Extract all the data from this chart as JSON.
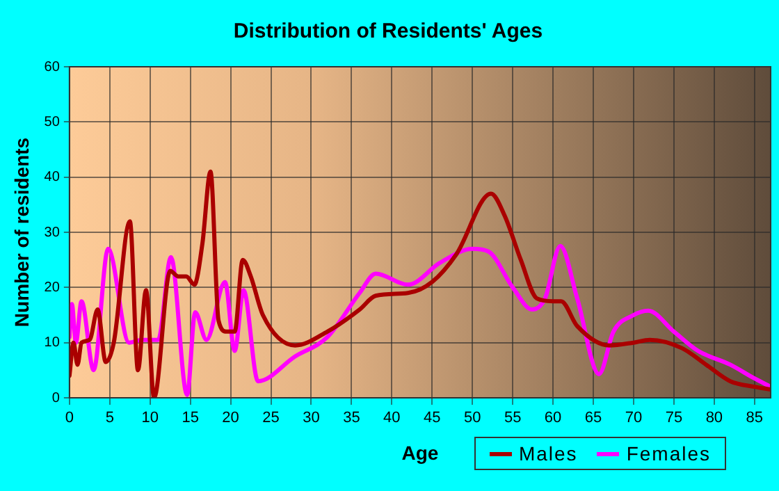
{
  "chart_data": {
    "type": "line",
    "title": "Distribution of Residents' Ages",
    "xlabel": "Age",
    "ylabel": "Number of residents",
    "xlim": [
      0,
      87
    ],
    "xticks": [
      0,
      5,
      10,
      15,
      20,
      25,
      30,
      35,
      40,
      45,
      50,
      55,
      60,
      65,
      70,
      75,
      80,
      85
    ],
    "ylim": [
      0,
      60
    ],
    "yticks": [
      0,
      10,
      20,
      30,
      40,
      50,
      60
    ],
    "grid": true,
    "legend": "bottom right",
    "marker": "none",
    "line_style": "solid",
    "series": [
      {
        "name": "Males",
        "color": "#aa0000",
        "x": [
          0,
          0.5,
          1,
          1.5,
          2.5,
          3.5,
          4.5,
          5.5,
          7.5,
          8.5,
          9.5,
          10.5,
          12.5,
          13.5,
          14.5,
          15.5,
          16.5,
          17.5,
          18.5,
          19.5,
          20.5,
          21.5,
          22.5,
          24,
          28,
          32,
          36,
          38,
          42,
          45,
          48,
          52.3,
          54,
          56,
          58,
          60,
          61,
          63,
          67,
          70,
          72,
          76,
          79,
          82,
          85,
          87
        ],
        "values": [
          4,
          10,
          6,
          10,
          10.5,
          16,
          6.5,
          10,
          32,
          5,
          19.5,
          0,
          23,
          22,
          22,
          20.5,
          28,
          41,
          14,
          12,
          12,
          25,
          22,
          15,
          9.5,
          12,
          16,
          18.5,
          19,
          21,
          26,
          37,
          33,
          25,
          18,
          17.5,
          17.5,
          13,
          9.5,
          10,
          10.5,
          9,
          6,
          3,
          2,
          1.5
        ]
      },
      {
        "name": "Females",
        "color": "#ff00ff",
        "x": [
          0,
          0.3,
          0.8,
          1.5,
          3,
          4.8,
          7.4,
          9,
          11,
          12.6,
          14.6,
          15.6,
          17,
          19.3,
          20.5,
          21.6,
          23.4,
          28,
          32,
          36,
          38,
          42,
          46,
          50,
          52,
          55,
          57.4,
          59,
          60.9,
          63,
          65.7,
          67.5,
          70,
          71.8,
          75,
          78,
          82,
          85,
          87
        ],
        "values": [
          11,
          17,
          10,
          17.5,
          5,
          27,
          10,
          10.5,
          10.5,
          25.5,
          0.5,
          15.5,
          10.5,
          21,
          8.5,
          19.5,
          3,
          7.5,
          11,
          19,
          22.5,
          20.5,
          24.5,
          27,
          26.5,
          20,
          16,
          18,
          27.5,
          18,
          4.3,
          12,
          15,
          15.8,
          12,
          8.5,
          6,
          3.5,
          2
        ]
      }
    ]
  }
}
